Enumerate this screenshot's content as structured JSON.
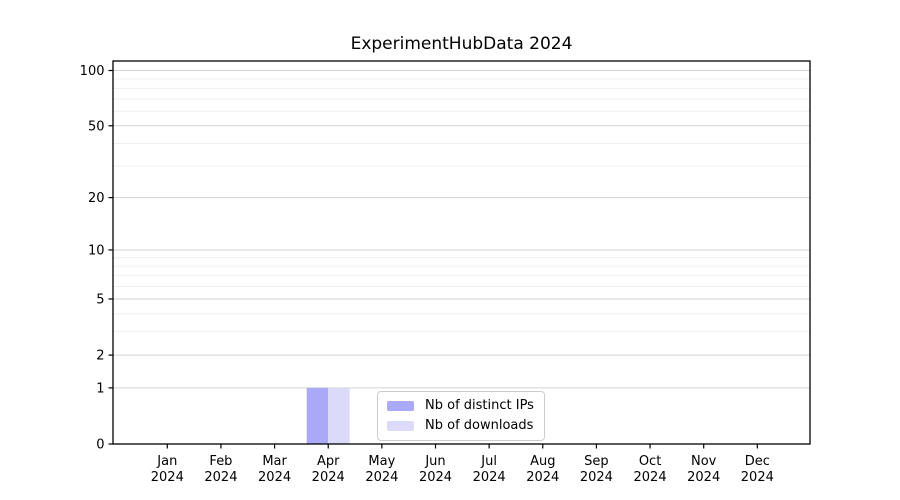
{
  "title": "ExperimentHubData 2024",
  "legend": {
    "items": [
      {
        "label": "Nb of distinct IPs",
        "color": "#a9a9f7"
      },
      {
        "label": "Nb of downloads",
        "color": "#dbdbf9"
      }
    ]
  },
  "colors": {
    "bar_distinct_ips": "#a9a9f7",
    "bar_downloads": "#dbdbf9",
    "grid_major": "#d2d2d2",
    "grid_minor": "#efefef",
    "axis_frame": "#000000",
    "tick_text": "#000000",
    "legend_border": "#cccccc",
    "background": "#ffffff"
  },
  "chart_data": {
    "type": "bar",
    "title": "ExperimentHubData 2024",
    "x_months": [
      "Jan",
      "Feb",
      "Mar",
      "Apr",
      "May",
      "Jun",
      "Jul",
      "Aug",
      "Sep",
      "Oct",
      "Nov",
      "Dec"
    ],
    "x_year": "2024",
    "series": [
      {
        "name": "Nb of distinct IPs",
        "values": [
          0,
          0,
          0,
          1,
          0,
          0,
          0,
          0,
          0,
          0,
          0,
          0
        ]
      },
      {
        "name": "Nb of downloads",
        "values": [
          0,
          0,
          0,
          1,
          0,
          0,
          0,
          0,
          0,
          0,
          0,
          0
        ]
      }
    ],
    "y_scale": "log1p",
    "y_ticks_labeled": [
      0,
      1,
      2,
      5,
      10,
      20,
      50,
      100
    ],
    "y_ticks_minor": [
      3,
      4,
      6,
      7,
      8,
      9,
      30,
      40,
      60,
      70,
      80,
      90
    ],
    "ylim": [
      0,
      110
    ],
    "grid": "horizontal",
    "legend_position": "inside-bottom-center"
  }
}
